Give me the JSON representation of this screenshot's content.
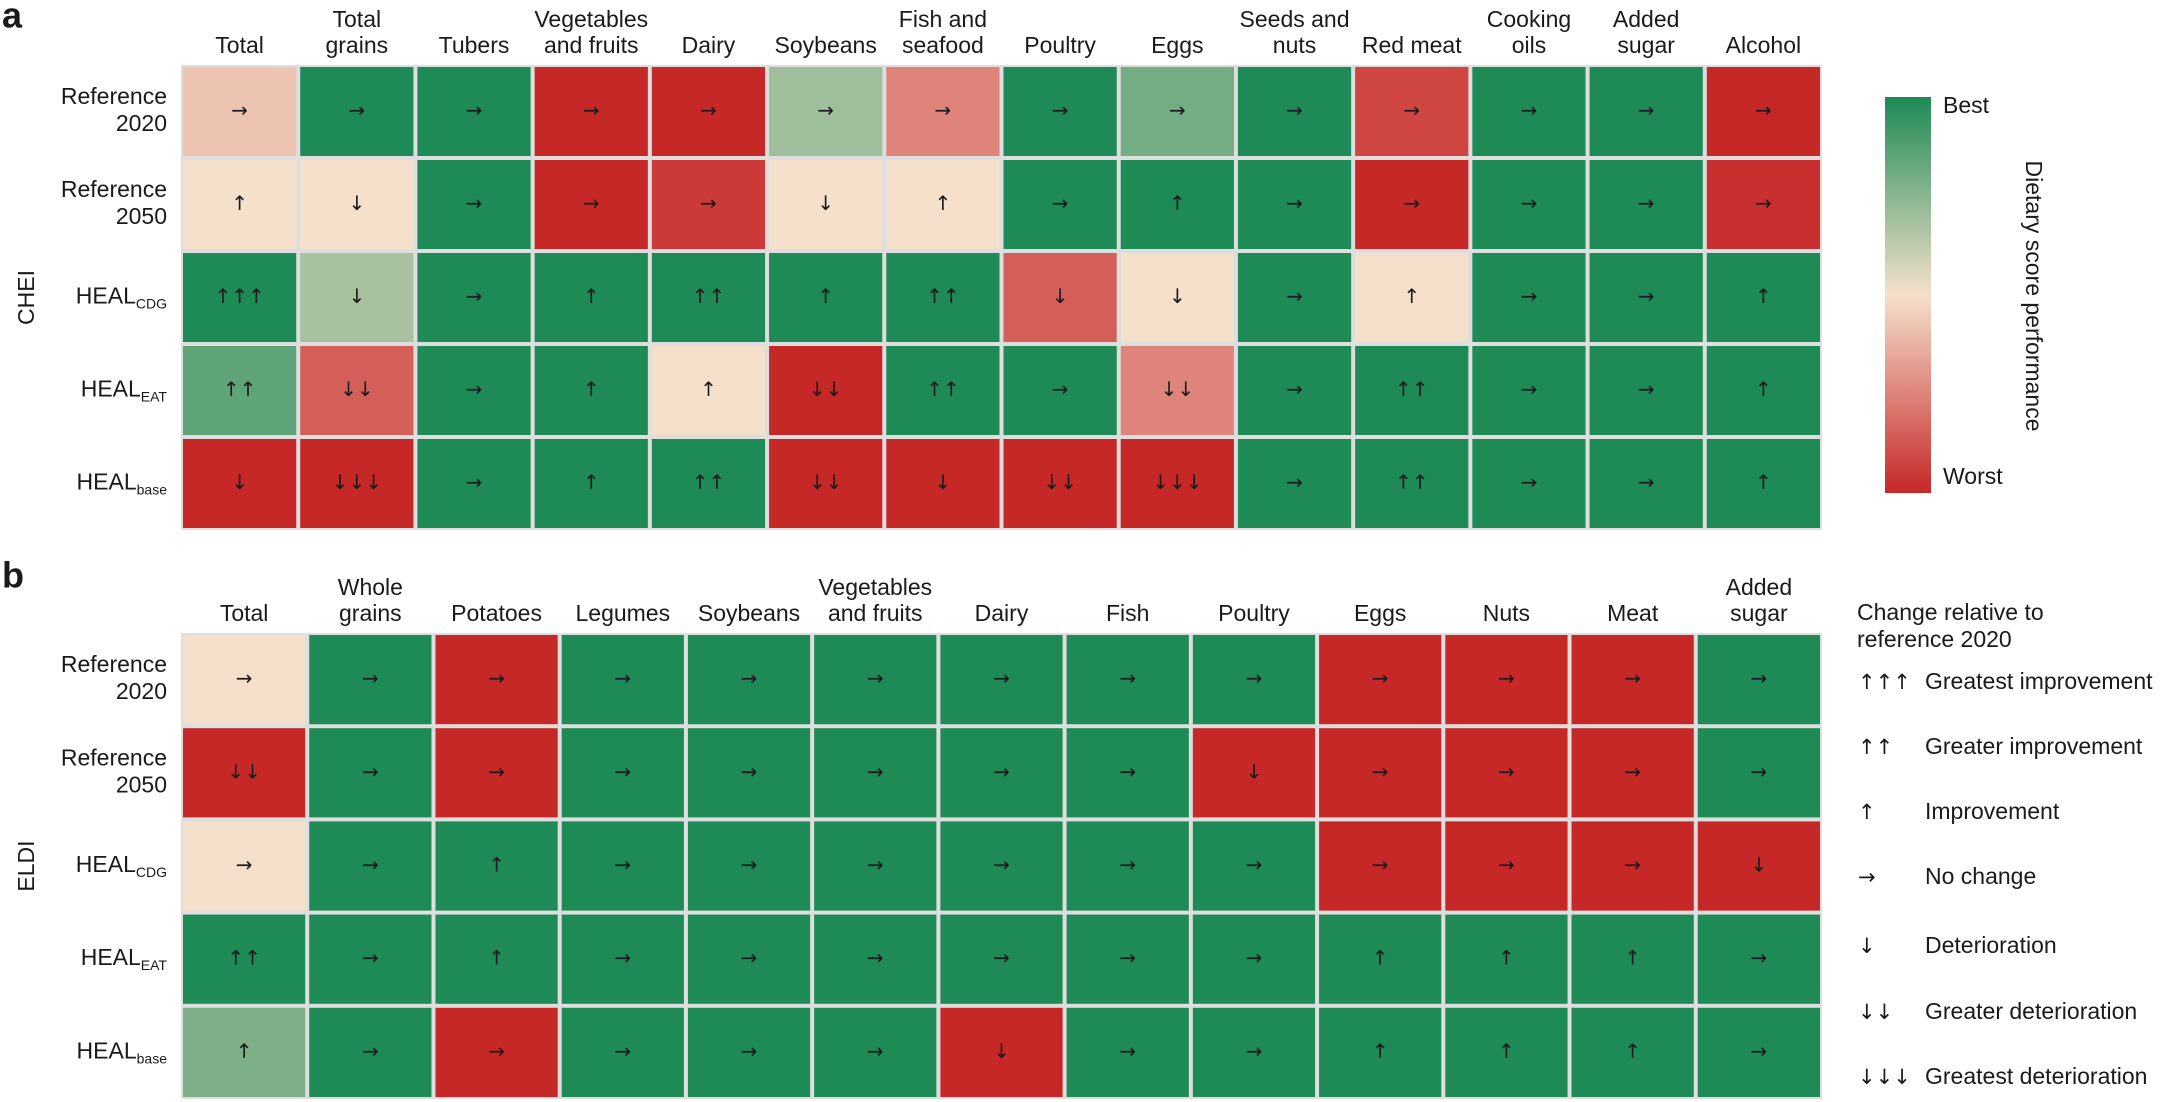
{
  "chart_data": [
    {
      "type": "heatmap",
      "panel_label": "a",
      "ylabel": "CHEI",
      "columns": [
        [
          "Total"
        ],
        [
          "Total",
          "grains"
        ],
        [
          "Tubers"
        ],
        [
          "Vegetables",
          "and fruits"
        ],
        [
          "Dairy"
        ],
        [
          "Soybeans"
        ],
        [
          "Fish and",
          "seafood"
        ],
        [
          "Poultry"
        ],
        [
          "Eggs"
        ],
        [
          "Seeds and",
          "nuts"
        ],
        [
          "Red meat"
        ],
        [
          "Cooking",
          "oils"
        ],
        [
          "Added",
          "sugar"
        ],
        [
          "Alcohol"
        ]
      ],
      "rows": [
        {
          "lines": [
            "Reference",
            "2020"
          ]
        },
        {
          "lines": [
            "Reference",
            "2050"
          ]
        },
        {
          "text": "HEAL",
          "sub": "CDG"
        },
        {
          "text": "HEAL",
          "sub": "EAT"
        },
        {
          "text": "HEAL",
          "sub": "base"
        }
      ],
      "values": [
        [
          0.42,
          1,
          1,
          0,
          0,
          0.7,
          0.25,
          1,
          0.8,
          1,
          0.08,
          1,
          1,
          0
        ],
        [
          0.5,
          0.5,
          1,
          0,
          0.05,
          0.5,
          0.5,
          1,
          1,
          1,
          0,
          1,
          1,
          0.02
        ],
        [
          1,
          0.68,
          1,
          1,
          1,
          1,
          1,
          0.15,
          0.5,
          1,
          0.5,
          1,
          1,
          1
        ],
        [
          0.85,
          0.15,
          1,
          1,
          0.5,
          0,
          1,
          1,
          0.25,
          1,
          1,
          1,
          1,
          1
        ],
        [
          0,
          0,
          1,
          1,
          1,
          0,
          0,
          0,
          0,
          1,
          1,
          1,
          1,
          1
        ]
      ],
      "arrows": [
        [
          "→",
          "→",
          "→",
          "→",
          "→",
          "→",
          "→",
          "→",
          "→",
          "→",
          "→",
          "→",
          "→",
          "→"
        ],
        [
          "↑",
          "↓",
          "→",
          "→",
          "→",
          "↓",
          "↑",
          "→",
          "↑",
          "→",
          "→",
          "→",
          "→",
          "→"
        ],
        [
          "↑↑↑",
          "↓",
          "→",
          "↑",
          "↑↑",
          "↑",
          "↑↑",
          "↓",
          "↓",
          "→",
          "↑",
          "→",
          "→",
          "↑"
        ],
        [
          "↑↑",
          "↓↓",
          "→",
          "↑",
          "↑",
          "↓↓",
          "↑↑",
          "→",
          "↓↓",
          "→",
          "↑↑",
          "→",
          "→",
          "↑"
        ],
        [
          "↓",
          "↓↓↓",
          "→",
          "↑",
          "↑↑",
          "↓↓",
          "↓",
          "↓↓",
          "↓↓↓",
          "→",
          "↑↑",
          "→",
          "→",
          "↑"
        ]
      ]
    },
    {
      "type": "heatmap",
      "panel_label": "b",
      "ylabel": "ELDI",
      "columns": [
        [
          "Total"
        ],
        [
          "Whole",
          "grains"
        ],
        [
          "Potatoes"
        ],
        [
          "Legumes"
        ],
        [
          "Soybeans"
        ],
        [
          "Vegetables",
          "and fruits"
        ],
        [
          "Dairy"
        ],
        [
          "Fish"
        ],
        [
          "Poultry"
        ],
        [
          "Eggs"
        ],
        [
          "Nuts"
        ],
        [
          "Meat"
        ],
        [
          "Added",
          "sugar"
        ]
      ],
      "rows": [
        {
          "lines": [
            "Reference",
            "2020"
          ]
        },
        {
          "lines": [
            "Reference",
            "2050"
          ]
        },
        {
          "text": "HEAL",
          "sub": "CDG"
        },
        {
          "text": "HEAL",
          "sub": "EAT"
        },
        {
          "text": "HEAL",
          "sub": "base"
        }
      ],
      "values": [
        [
          0.5,
          1,
          0,
          1,
          1,
          1,
          1,
          1,
          1,
          0,
          0,
          0,
          1
        ],
        [
          0,
          1,
          0,
          1,
          1,
          1,
          1,
          1,
          0,
          0,
          0,
          0,
          1
        ],
        [
          0.5,
          1,
          1,
          1,
          1,
          1,
          1,
          1,
          1,
          0,
          0,
          0,
          0
        ],
        [
          1,
          1,
          1,
          1,
          1,
          1,
          1,
          1,
          1,
          1,
          1,
          1,
          1
        ],
        [
          0.78,
          1,
          0,
          1,
          1,
          1,
          0,
          1,
          1,
          1,
          1,
          1,
          1
        ]
      ],
      "arrows": [
        [
          "→",
          "→",
          "→",
          "→",
          "→",
          "→",
          "→",
          "→",
          "→",
          "→",
          "→",
          "→",
          "→"
        ],
        [
          "↓↓",
          "→",
          "→",
          "→",
          "→",
          "→",
          "→",
          "→",
          "↓",
          "→",
          "→",
          "→",
          "→"
        ],
        [
          "→",
          "→",
          "↑",
          "→",
          "→",
          "→",
          "→",
          "→",
          "→",
          "→",
          "→",
          "→",
          "↓"
        ],
        [
          "↑↑",
          "→",
          "↑",
          "→",
          "→",
          "→",
          "→",
          "→",
          "→",
          "↑",
          "↑",
          "↑",
          "→"
        ],
        [
          "↑",
          "→",
          "→",
          "→",
          "→",
          "→",
          "↓",
          "→",
          "→",
          "↑",
          "↑",
          "↑",
          "→"
        ]
      ]
    }
  ],
  "colorbar": {
    "colors": [
      "#c62828",
      "#f5e0cb",
      "#1e8a55"
    ],
    "high_label": "Best",
    "low_label": "Worst",
    "title": "Dietary score performance"
  },
  "legend": {
    "title": [
      "Change relative to",
      "reference 2020"
    ],
    "entries": [
      {
        "symbol": "↑↑↑",
        "label": "Greatest improvement"
      },
      {
        "symbol": "↑↑",
        "label": "Greater improvement"
      },
      {
        "symbol": "↑",
        "label": "Improvement"
      },
      {
        "symbol": "→",
        "label": "No change"
      },
      {
        "symbol": "↓",
        "label": "Deterioration"
      },
      {
        "symbol": "↓↓",
        "label": "Greater deterioration"
      },
      {
        "symbol": "↓↓↓",
        "label": "Greatest deterioration"
      }
    ]
  }
}
